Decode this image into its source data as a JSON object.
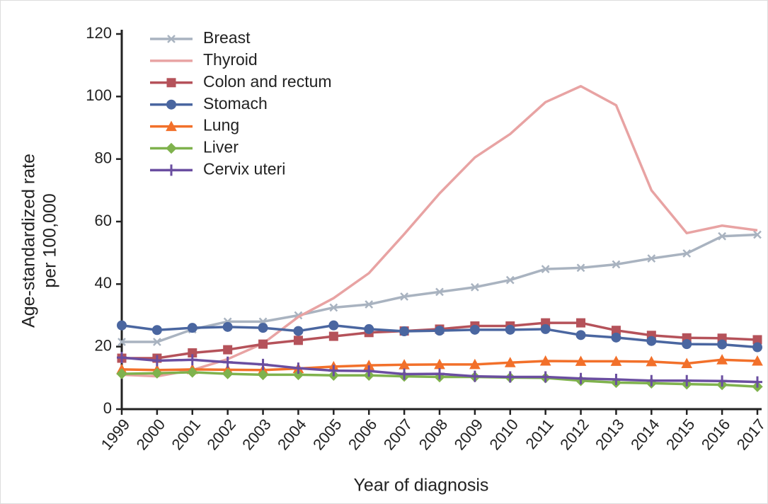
{
  "chart_data": {
    "type": "line",
    "xlabel": "Year of diagnosis",
    "ylabel": [
      "Age-standardized rate",
      "per 100,000"
    ],
    "categories": [
      "1999",
      "2000",
      "2001",
      "2002",
      "2003",
      "2004",
      "2005",
      "2006",
      "2007",
      "2008",
      "2009",
      "2010",
      "2011",
      "2012",
      "2013",
      "2014",
      "2015",
      "2016",
      "2017"
    ],
    "ylim": [
      0,
      120
    ],
    "yticks": [
      0,
      20,
      40,
      60,
      80,
      100,
      120
    ],
    "grid": false,
    "legend": "upper left",
    "series": [
      {
        "name": "Breast",
        "color": "#a9b3c0",
        "marker": "x",
        "values": [
          21.5,
          21.5,
          25.5,
          28,
          28,
          30,
          32.5,
          33.5,
          36,
          37.5,
          39,
          41.3,
          44.8,
          45.2,
          46.3,
          48.2,
          49.8,
          55.3,
          55.8
        ]
      },
      {
        "name": "Thyroid",
        "color": "#e8a3a3",
        "marker": "none",
        "values": [
          11,
          10.5,
          12.5,
          16,
          21,
          29.5,
          35.5,
          43.5,
          56,
          69,
          80.5,
          88,
          98.2,
          103.3,
          97.2,
          70,
          56.3,
          58.7,
          57.2
        ]
      },
      {
        "name": "Colon and rectum",
        "color": "#b5525a",
        "marker": "square",
        "values": [
          16.3,
          16.3,
          18,
          19,
          20.8,
          22,
          23.3,
          24.5,
          25,
          25.6,
          26.6,
          26.6,
          27.6,
          27.6,
          25.2,
          23.6,
          22.8,
          22.7,
          22.2
        ]
      },
      {
        "name": "Stomach",
        "color": "#4a66a0",
        "marker": "circle",
        "values": [
          26.8,
          25.3,
          26,
          26.3,
          26,
          25,
          26.8,
          25.6,
          24.9,
          25.1,
          25.4,
          25.4,
          25.6,
          23.7,
          22.9,
          21.8,
          20.8,
          20.7,
          19.8
        ]
      },
      {
        "name": "Lung",
        "color": "#f2702a",
        "marker": "triangle",
        "values": [
          12.7,
          12.5,
          12.7,
          12.6,
          12.5,
          13,
          13.6,
          14,
          14.2,
          14.3,
          14.3,
          14.9,
          15.4,
          15.3,
          15.3,
          15.2,
          14.6,
          15.8,
          15.4
        ]
      },
      {
        "name": "Liver",
        "color": "#7fb24d",
        "marker": "diamond",
        "values": [
          11.3,
          11.5,
          11.8,
          11.3,
          11,
          11,
          10.8,
          10.8,
          10.5,
          10.3,
          10.3,
          10.1,
          10,
          9.1,
          8.5,
          8.3,
          8,
          7.8,
          7.2
        ]
      },
      {
        "name": "Cervix uteri",
        "color": "#6a4ea0",
        "marker": "plus",
        "values": [
          16.5,
          15.5,
          15.8,
          15,
          14.3,
          13.1,
          12.3,
          12.2,
          11.2,
          11.3,
          10.5,
          10.3,
          10.3,
          9.8,
          9.5,
          9.1,
          9.1,
          9,
          8.7
        ]
      }
    ]
  }
}
